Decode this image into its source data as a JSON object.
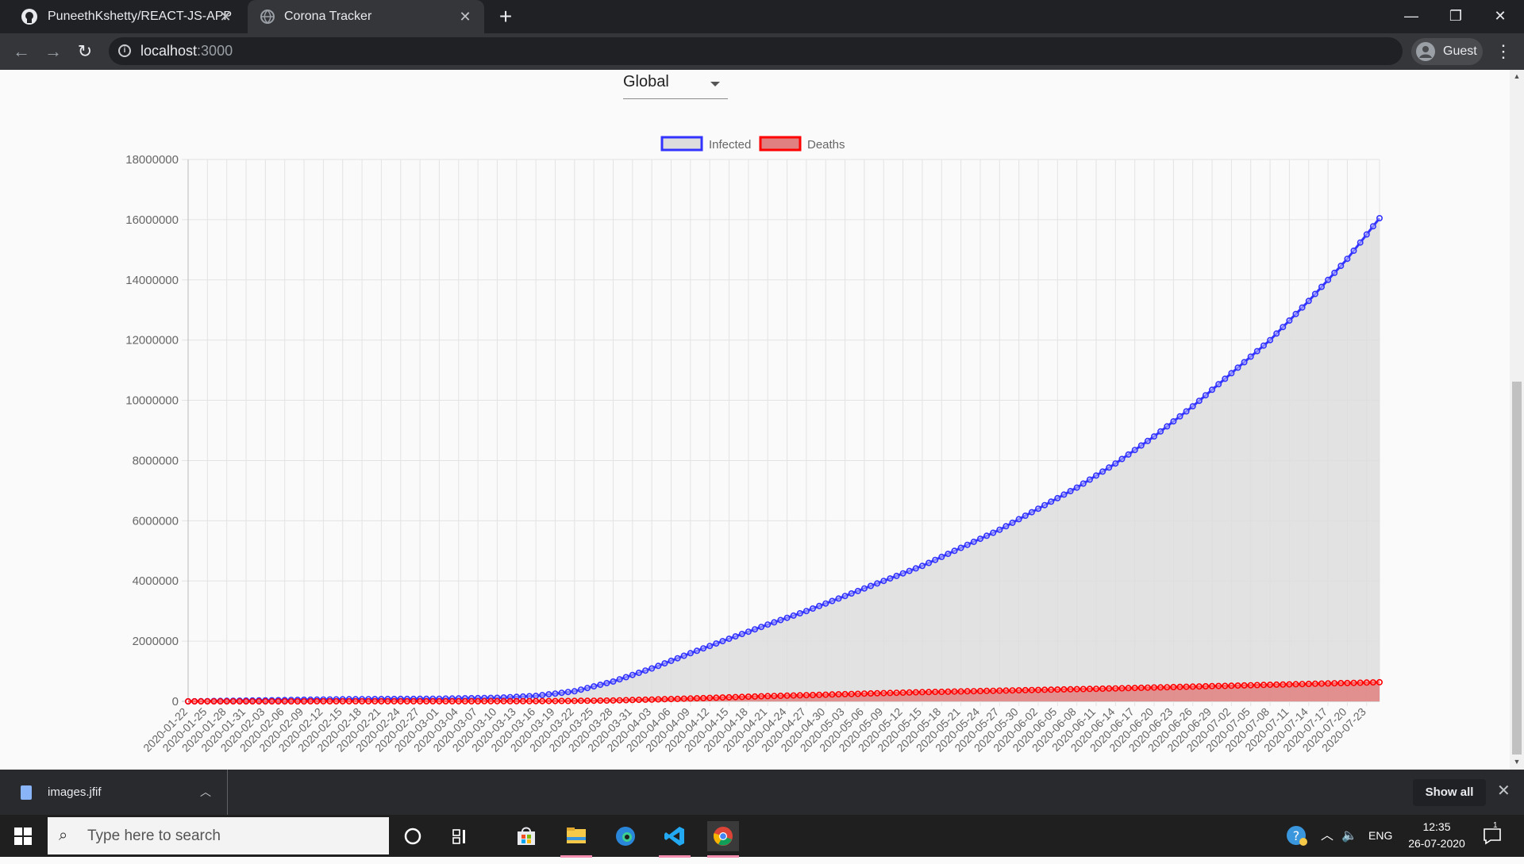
{
  "browser": {
    "tabs": [
      {
        "title": "PuneethKshetty/REACT-JS-APP",
        "active": false,
        "icon": "github-icon"
      },
      {
        "title": "Corona Tracker",
        "active": true,
        "icon": "globe-icon"
      }
    ],
    "url_host": "localhost",
    "url_port": ":3000",
    "profile_label": "Guest"
  },
  "page": {
    "country_select_value": "Global"
  },
  "chart_data": {
    "type": "line",
    "fill": true,
    "ylim": [
      0,
      18000000
    ],
    "yticks": [
      0,
      2000000,
      4000000,
      6000000,
      8000000,
      10000000,
      12000000,
      14000000,
      16000000,
      18000000
    ],
    "ytick_labels": [
      "0",
      "2000000",
      "4000000",
      "6000000",
      "8000000",
      "10000000",
      "12000000",
      "14000000",
      "16000000",
      "18000000"
    ],
    "x_start": "2020-01-22",
    "x_end": "2020-07-25",
    "xtick_labels": [
      "2020-01-22",
      "2020-01-25",
      "2020-01-28",
      "2020-01-31",
      "2020-02-03",
      "2020-02-06",
      "2020-02-09",
      "2020-02-12",
      "2020-02-15",
      "2020-02-18",
      "2020-02-21",
      "2020-02-24",
      "2020-02-27",
      "2020-03-01",
      "2020-03-04",
      "2020-03-07",
      "2020-03-10",
      "2020-03-13",
      "2020-03-16",
      "2020-03-19",
      "2020-03-22",
      "2020-03-25",
      "2020-03-28",
      "2020-03-31",
      "2020-04-03",
      "2020-04-06",
      "2020-04-09",
      "2020-04-12",
      "2020-04-15",
      "2020-04-18",
      "2020-04-21",
      "2020-04-24",
      "2020-04-27",
      "2020-04-30",
      "2020-05-03",
      "2020-05-06",
      "2020-05-09",
      "2020-05-12",
      "2020-05-15",
      "2020-05-18",
      "2020-05-21",
      "2020-05-24",
      "2020-05-27",
      "2020-05-30",
      "2020-06-02",
      "2020-06-05",
      "2020-06-08",
      "2020-06-11",
      "2020-06-14",
      "2020-06-17",
      "2020-06-20",
      "2020-06-23",
      "2020-06-26",
      "2020-06-29",
      "2020-07-02",
      "2020-07-05",
      "2020-07-08",
      "2020-07-11",
      "2020-07-14",
      "2020-07-17",
      "2020-07-20",
      "2020-07-23"
    ],
    "legend_position": "top",
    "grid": true,
    "series": [
      {
        "name": "Infected",
        "color": "#3333ff",
        "fill_color": "#dddddd",
        "anchors": [
          [
            "2020-01-22",
            555
          ],
          [
            "2020-02-15",
            69000
          ],
          [
            "2020-03-01",
            88000
          ],
          [
            "2020-03-10",
            119000
          ],
          [
            "2020-03-16",
            182000
          ],
          [
            "2020-03-22",
            336000
          ],
          [
            "2020-03-28",
            660000
          ],
          [
            "2020-04-03",
            1095000
          ],
          [
            "2020-04-09",
            1600000
          ],
          [
            "2020-04-15",
            2080000
          ],
          [
            "2020-04-21",
            2550000
          ],
          [
            "2020-04-27",
            3000000
          ],
          [
            "2020-05-03",
            3500000
          ],
          [
            "2020-05-09",
            4000000
          ],
          [
            "2020-05-15",
            4500000
          ],
          [
            "2020-05-21",
            5100000
          ],
          [
            "2020-05-27",
            5700000
          ],
          [
            "2020-06-02",
            6400000
          ],
          [
            "2020-06-08",
            7100000
          ],
          [
            "2020-06-14",
            7900000
          ],
          [
            "2020-06-20",
            8800000
          ],
          [
            "2020-06-26",
            9800000
          ],
          [
            "2020-07-02",
            10900000
          ],
          [
            "2020-07-08",
            12000000
          ],
          [
            "2020-07-14",
            13300000
          ],
          [
            "2020-07-20",
            14700000
          ],
          [
            "2020-07-25",
            16050000
          ]
        ]
      },
      {
        "name": "Deaths",
        "color": "#ff0000",
        "fill_color": "#e08080",
        "anchors": [
          [
            "2020-01-22",
            17
          ],
          [
            "2020-02-15",
            1700
          ],
          [
            "2020-03-01",
            3000
          ],
          [
            "2020-03-10",
            4300
          ],
          [
            "2020-03-16",
            7000
          ],
          [
            "2020-03-22",
            14600
          ],
          [
            "2020-03-28",
            30000
          ],
          [
            "2020-04-03",
            59000
          ],
          [
            "2020-04-09",
            95000
          ],
          [
            "2020-04-15",
            135000
          ],
          [
            "2020-04-21",
            175000
          ],
          [
            "2020-04-27",
            205000
          ],
          [
            "2020-05-03",
            240000
          ],
          [
            "2020-05-09",
            275000
          ],
          [
            "2020-05-15",
            305000
          ],
          [
            "2020-05-21",
            330000
          ],
          [
            "2020-05-27",
            355000
          ],
          [
            "2020-06-02",
            380000
          ],
          [
            "2020-06-08",
            405000
          ],
          [
            "2020-06-14",
            430000
          ],
          [
            "2020-06-20",
            460000
          ],
          [
            "2020-06-26",
            490000
          ],
          [
            "2020-07-02",
            520000
          ],
          [
            "2020-07-08",
            550000
          ],
          [
            "2020-07-14",
            580000
          ],
          [
            "2020-07-20",
            610000
          ],
          [
            "2020-07-25",
            635000
          ]
        ]
      }
    ]
  },
  "downloads": {
    "file_name": "images.jfif",
    "show_all_label": "Show all"
  },
  "taskbar": {
    "search_placeholder": "Type here to search",
    "lang": "ENG",
    "time": "12:35",
    "date": "26-07-2020",
    "notification_count": "1"
  }
}
